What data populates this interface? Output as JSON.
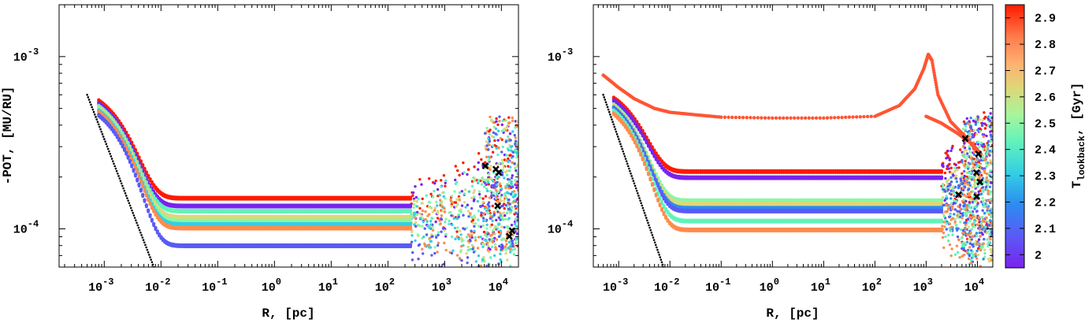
{
  "chart_data": [
    {
      "type": "scatter",
      "panel": "left",
      "xlabel": "R, [pc]",
      "ylabel": "-POT, [MU/RU]",
      "xscale": "log",
      "yscale": "log",
      "xlim": [
        0.00016,
        20000
      ],
      "ylim": [
        6e-05,
        0.002
      ],
      "x_ticks": [
        {
          "value": 0.001,
          "base": "10",
          "exp": "-3"
        },
        {
          "value": 0.01,
          "base": "10",
          "exp": "-2"
        },
        {
          "value": 0.1,
          "base": "10",
          "exp": "-1"
        },
        {
          "value": 1,
          "base": "10",
          "exp": "0"
        },
        {
          "value": 10,
          "base": "10",
          "exp": "1"
        },
        {
          "value": 100,
          "base": "10",
          "exp": "2"
        },
        {
          "value": 1000,
          "base": "10",
          "exp": "3"
        },
        {
          "value": 10000,
          "base": "10",
          "exp": "4"
        }
      ],
      "y_ticks": [
        {
          "value": 0.001,
          "base": "10",
          "exp": "-3"
        },
        {
          "value": 0.0001,
          "base": "10",
          "exp": "-4"
        }
      ],
      "series": [
        {
          "name": "2.91 Gyr",
          "color": "#ff1a00",
          "plateau": 0.000152,
          "inner": 0.00056,
          "r_end": 250,
          "spread": 0.1
        },
        {
          "name": "2.00 Gyr",
          "color": "#7a22ee",
          "plateau": 0.000137,
          "inner": 0.00054,
          "r_end": 250,
          "spread": 0.1
        },
        {
          "name": "2.45 Gyr",
          "color": "#62f2bb",
          "plateau": 0.000128,
          "inner": 0.00052,
          "r_end": 250,
          "spread": 0.1
        },
        {
          "name": "2.65 Gyr",
          "color": "#dcd879",
          "plateau": 0.000118,
          "inner": 0.00051,
          "r_end": 250,
          "spread": 0.1
        },
        {
          "name": "2.40 Gyr",
          "color": "#88f7a6",
          "plateau": 0.000112,
          "inner": 0.0005,
          "r_end": 250,
          "spread": 0.1
        },
        {
          "name": "2.30 Gyr",
          "color": "#34cee4",
          "plateau": 0.000107,
          "inner": 0.00049,
          "r_end": 250,
          "spread": 0.1
        },
        {
          "name": "2.75 Gyr",
          "color": "#ff8b4d",
          "plateau": 0.000102,
          "inner": 0.00048,
          "r_end": 250,
          "spread": 0.1
        },
        {
          "name": "2.10 Gyr",
          "color": "#5a5af5",
          "plateau": 8.05e-05,
          "inner": 0.00046,
          "r_end": 250,
          "spread": 0.1
        }
      ],
      "black_line": {
        "x": [
          0.0005,
          0.0075
        ],
        "y": [
          0.0006,
          6e-05
        ]
      },
      "black_markers": [
        {
          "r": 5200,
          "pot": 0.000232
        },
        {
          "r": 8000,
          "pot": 0.000222
        },
        {
          "r": 9000,
          "pot": 0.000212
        },
        {
          "r": 8600,
          "pot": 0.000136
        },
        {
          "r": 15500,
          "pot": 9.75e-05
        },
        {
          "r": 13800,
          "pot": 9.05e-05
        }
      ]
    },
    {
      "type": "scatter",
      "panel": "right",
      "xlabel": "R, [pc]",
      "ylabel": "",
      "xscale": "log",
      "yscale": "log",
      "xlim": [
        0.00032,
        20000
      ],
      "ylim": [
        6e-05,
        0.002
      ],
      "x_ticks": [
        {
          "value": 0.001,
          "base": "10",
          "exp": "-3"
        },
        {
          "value": 0.01,
          "base": "10",
          "exp": "-2"
        },
        {
          "value": 0.1,
          "base": "10",
          "exp": "-1"
        },
        {
          "value": 1,
          "base": "10",
          "exp": "0"
        },
        {
          "value": 10,
          "base": "10",
          "exp": "1"
        },
        {
          "value": 100,
          "base": "10",
          "exp": "2"
        },
        {
          "value": 1000,
          "base": "10",
          "exp": "3"
        },
        {
          "value": 10000,
          "base": "10",
          "exp": "4"
        }
      ],
      "y_ticks": [
        {
          "value": 0.001,
          "base": "10",
          "exp": "-3"
        },
        {
          "value": 0.0001,
          "base": "10",
          "exp": "-4"
        }
      ],
      "series": [
        {
          "name": "2.91 Gyr",
          "color": "#ff1a00",
          "plateau": 0.000217,
          "inner": 0.00058,
          "r_end": 2000,
          "spread": 0.12
        },
        {
          "name": "2.00 Gyr",
          "color": "#7a22ee",
          "plateau": 0.0002,
          "inner": 0.00056,
          "r_end": 2000,
          "spread": 0.12
        },
        {
          "name": "2.40 Gyr",
          "color": "#88f7a6",
          "plateau": 0.000147,
          "inner": 0.00053,
          "r_end": 2000,
          "spread": 0.12
        },
        {
          "name": "2.65 Gyr",
          "color": "#dcd879",
          "plateau": 0.000141,
          "inner": 0.00052,
          "r_end": 2000,
          "spread": 0.12
        },
        {
          "name": "2.20 Gyr",
          "color": "#2c8cf2",
          "plateau": 0.000133,
          "inner": 0.00051,
          "r_end": 2000,
          "spread": 0.12
        },
        {
          "name": "2.10 Gyr",
          "color": "#5a5af5",
          "plateau": 0.000128,
          "inner": 0.0005,
          "r_end": 2000,
          "spread": 0.12
        },
        {
          "name": "2.45 Gyr",
          "color": "#62f2bb",
          "plateau": 0.000112,
          "inner": 0.00049,
          "r_end": 2000,
          "spread": 0.12
        },
        {
          "name": "2.75 Gyr",
          "color": "#ff8b4d",
          "plateau": 9.95e-05,
          "inner": 0.00047,
          "r_end": 2000,
          "spread": 0.12
        }
      ],
      "upper_track": {
        "name": "2.85 Gyr",
        "color": "#ff5533",
        "points": [
          [
            0.0005,
            0.00078
          ],
          [
            0.001,
            0.00066
          ],
          [
            0.002,
            0.00057
          ],
          [
            0.005,
            0.0005
          ],
          [
            0.01,
            0.000475
          ],
          [
            0.03,
            0.00046
          ],
          [
            0.1,
            0.000445
          ],
          [
            1,
            0.00044
          ],
          [
            10,
            0.00044
          ],
          [
            100,
            0.00045
          ],
          [
            300,
            0.00052
          ],
          [
            600,
            0.00065
          ],
          [
            900,
            0.00085
          ],
          [
            1100,
            0.00103
          ],
          [
            1300,
            0.00095
          ],
          [
            1700,
            0.0006
          ],
          [
            3000,
            0.00042
          ],
          [
            6000,
            0.00034
          ],
          [
            10000,
            0.00028
          ]
        ],
        "branch": [
          [
            1000,
            0.00045
          ],
          [
            2000,
            0.00041
          ],
          [
            4000,
            0.00036
          ],
          [
            8000,
            0.00031
          ],
          [
            12000,
            0.00027
          ]
        ]
      },
      "black_line": {
        "x": [
          0.0005,
          0.0075
        ],
        "y": [
          0.0006,
          6e-05
        ]
      },
      "black_markers": [
        {
          "r": 5800,
          "pot": 0.000334
        },
        {
          "r": 10500,
          "pot": 0.000272
        },
        {
          "r": 9600,
          "pot": 0.000212
        },
        {
          "r": 11200,
          "pot": 0.000187
        },
        {
          "r": 4300,
          "pot": 0.000158
        },
        {
          "r": 9700,
          "pot": 0.000154
        }
      ]
    }
  ],
  "colorbar": {
    "label_main": "T",
    "label_sub": "lookback",
    "label_unit": ", [Gyr]",
    "range": [
      1.95,
      2.95
    ],
    "ticks": [
      {
        "value": 2.0,
        "label": "2"
      },
      {
        "value": 2.1,
        "label": "2.1"
      },
      {
        "value": 2.2,
        "label": "2.2"
      },
      {
        "value": 2.3,
        "label": "2.3"
      },
      {
        "value": 2.4,
        "label": "2.4"
      },
      {
        "value": 2.5,
        "label": "2.5"
      },
      {
        "value": 2.6,
        "label": "2.6"
      },
      {
        "value": 2.7,
        "label": "2.7"
      },
      {
        "value": 2.8,
        "label": "2.8"
      },
      {
        "value": 2.9,
        "label": "2.9"
      }
    ],
    "colors": [
      "#7a22ee",
      "#5a5af5",
      "#2c8cf2",
      "#34cee4",
      "#62f2bb",
      "#88f7a6",
      "#c6ea8c",
      "#dcd879",
      "#ffb070",
      "#ff7a4a",
      "#ff1a00"
    ]
  }
}
